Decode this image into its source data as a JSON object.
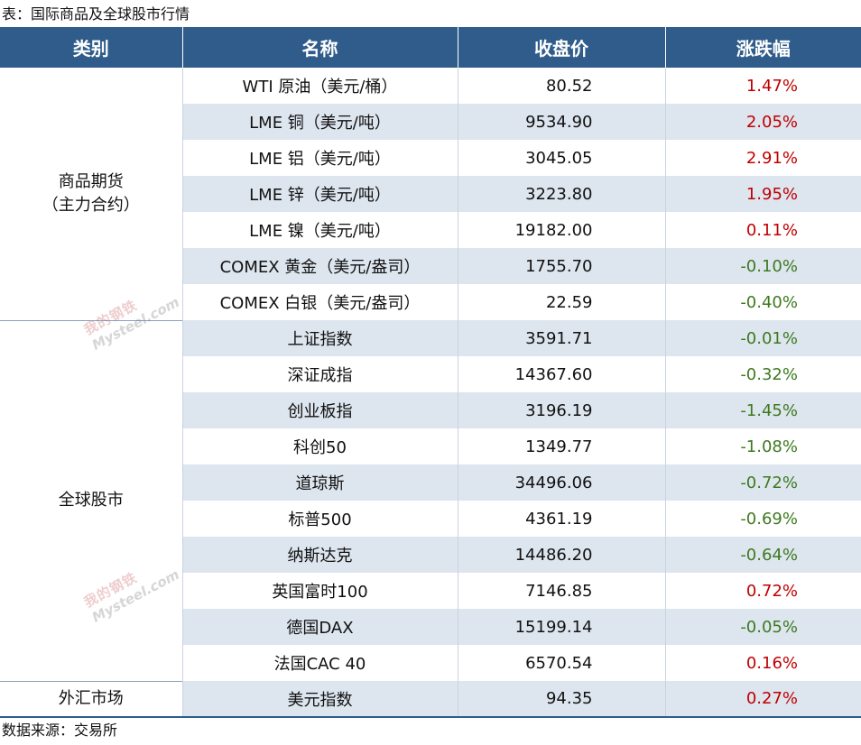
{
  "caption": "表：国际商品及全球股市行情",
  "source": "数据来源：交易所",
  "watermark": {
    "line1": "我的钢铁",
    "line2": "Mysteel.com"
  },
  "colors": {
    "header_bg": "#2f5c8a",
    "row_shade": "#dde5ef",
    "up": "#c00000",
    "down": "#3d7a1f"
  },
  "headers": [
    "类别",
    "名称",
    "收盘价",
    "涨跌幅"
  ],
  "groups": [
    {
      "label": "商品期货\n（主力合约）",
      "rows": [
        {
          "name": "WTI 原油（美元/桶）",
          "price": "80.52",
          "change": "1.47%",
          "dir": "up"
        },
        {
          "name": "LME 铜（美元/吨）",
          "price": "9534.90",
          "change": "2.05%",
          "dir": "up"
        },
        {
          "name": "LME 铝（美元/吨）",
          "price": "3045.05",
          "change": "2.91%",
          "dir": "up"
        },
        {
          "name": "LME 锌（美元/吨）",
          "price": "3223.80",
          "change": "1.95%",
          "dir": "up"
        },
        {
          "name": "LME 镍（美元/吨）",
          "price": "19182.00",
          "change": "0.11%",
          "dir": "up"
        },
        {
          "name": "COMEX 黄金（美元/盎司）",
          "price": "1755.70",
          "change": "-0.10%",
          "dir": "down"
        },
        {
          "name": "COMEX 白银（美元/盎司）",
          "price": "22.59",
          "change": "-0.40%",
          "dir": "down"
        }
      ]
    },
    {
      "label": "全球股市",
      "rows": [
        {
          "name": "上证指数",
          "price": "3591.71",
          "change": "-0.01%",
          "dir": "down"
        },
        {
          "name": "深证成指",
          "price": "14367.60",
          "change": "-0.32%",
          "dir": "down"
        },
        {
          "name": "创业板指",
          "price": "3196.19",
          "change": "-1.45%",
          "dir": "down"
        },
        {
          "name": "科创50",
          "price": "1349.77",
          "change": "-1.08%",
          "dir": "down"
        },
        {
          "name": "道琼斯",
          "price": "34496.06",
          "change": "-0.72%",
          "dir": "down"
        },
        {
          "name": "标普500",
          "price": "4361.19",
          "change": "-0.69%",
          "dir": "down"
        },
        {
          "name": "纳斯达克",
          "price": "14486.20",
          "change": "-0.64%",
          "dir": "down"
        },
        {
          "name": "英国富时100",
          "price": "7146.85",
          "change": "0.72%",
          "dir": "up"
        },
        {
          "name": "德国DAX",
          "price": "15199.14",
          "change": "-0.05%",
          "dir": "down"
        },
        {
          "name": "法国CAC 40",
          "price": "6570.54",
          "change": "0.16%",
          "dir": "up"
        }
      ]
    },
    {
      "label": "外汇市场",
      "rows": [
        {
          "name": "美元指数",
          "price": "94.35",
          "change": "0.27%",
          "dir": "up"
        }
      ]
    }
  ]
}
